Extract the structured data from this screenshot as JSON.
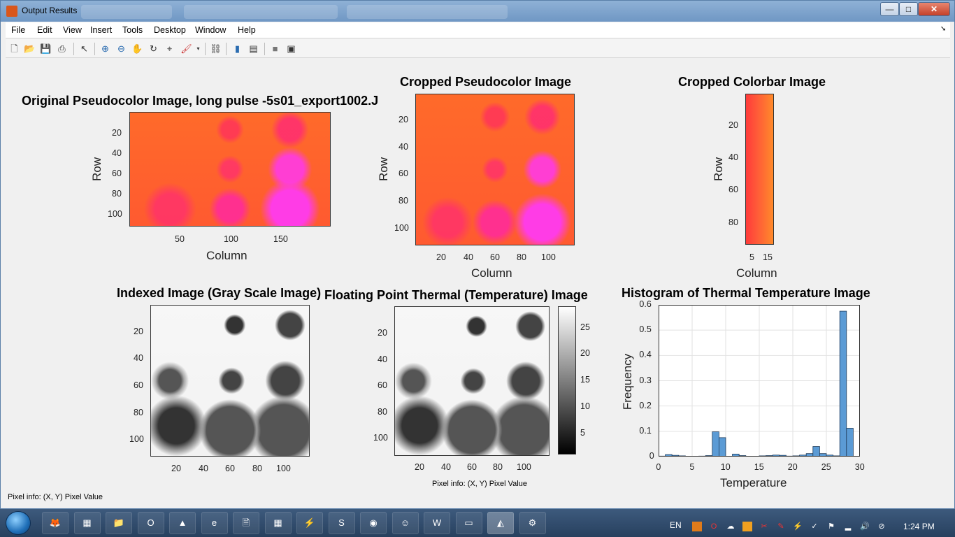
{
  "window": {
    "title": "Output Results",
    "min": "—",
    "max": "□",
    "close": "✕"
  },
  "menu": [
    "File",
    "Edit",
    "View",
    "Insert",
    "Tools",
    "Desktop",
    "Window",
    "Help"
  ],
  "toolbar_icons": [
    "new-figure-icon",
    "open-icon",
    "save-icon",
    "print-icon",
    "select-arrow-icon",
    "zoom-in-icon",
    "zoom-out-icon",
    "pan-icon",
    "rotate-icon",
    "data-cursor-icon",
    "brush-icon",
    "link-icon",
    "colorbar-icon",
    "legend-icon",
    "hide-plot-tools-icon",
    "show-plot-tools-icon"
  ],
  "panels": {
    "original": {
      "title": "Original Pseudocolor Image, long pulse -5s01_export1002.J",
      "ylabel": "Row",
      "xlabel": "Column",
      "yticks": [
        "20",
        "40",
        "60",
        "80",
        "100"
      ],
      "xticks": [
        "50",
        "100",
        "150"
      ]
    },
    "cropped": {
      "title": "Cropped Pseudocolor Image",
      "ylabel": "Row",
      "xlabel": "Column",
      "yticks": [
        "20",
        "40",
        "60",
        "80",
        "100"
      ],
      "xticks": [
        "20",
        "40",
        "60",
        "80",
        "100"
      ]
    },
    "colorbar_img": {
      "title": "Cropped Colorbar Image",
      "ylabel": "Row",
      "xlabel": "Column",
      "yticks": [
        "20",
        "40",
        "60",
        "80"
      ],
      "xticks": [
        "5",
        "15"
      ]
    },
    "indexed": {
      "title": "Indexed Image (Gray Scale Image)",
      "yticks": [
        "20",
        "40",
        "60",
        "80",
        "100"
      ],
      "xticks": [
        "20",
        "40",
        "60",
        "80",
        "100"
      ]
    },
    "thermal": {
      "title": "Floating Point Thermal (Temperature) Image",
      "yticks": [
        "20",
        "40",
        "60",
        "80",
        "100"
      ],
      "xticks": [
        "20",
        "40",
        "60",
        "80",
        "100"
      ],
      "cbar_ticks": [
        "25",
        "20",
        "15",
        "10",
        "5"
      ],
      "pixel_info": "Pixel info: (X, Y)  Pixel Value"
    },
    "histogram": {
      "title": "Histogram of Thermal Temperature Image",
      "ylabel": "Frequency",
      "xlabel": "Temperature"
    }
  },
  "status": {
    "pixel_info": "Pixel info: (X, Y)  Pixel Value"
  },
  "chart_data": {
    "type": "bar",
    "title": "Histogram of Thermal Temperature Image",
    "xlabel": "Temperature",
    "ylabel": "Frequency",
    "xlim": [
      0,
      30
    ],
    "ylim": [
      0,
      0.6
    ],
    "xticks": [
      0,
      5,
      10,
      15,
      20,
      25,
      30
    ],
    "yticks": [
      0,
      0.1,
      0.2,
      0.3,
      0.4,
      0.5,
      0.6
    ],
    "grid": true,
    "bar_color": "#5b9bd5",
    "bin_width": 1,
    "x": [
      0.5,
      1.5,
      2.5,
      3.5,
      4.5,
      5.5,
      6.5,
      7.5,
      8.5,
      9.5,
      10.5,
      11.5,
      12.5,
      13.5,
      14.5,
      15.5,
      16.5,
      17.5,
      18.5,
      19.5,
      20.5,
      21.5,
      22.5,
      23.5,
      24.5,
      25.5,
      26.5,
      27.5,
      28.5,
      29.5
    ],
    "values": [
      0.002,
      0.008,
      0.005,
      0.003,
      0.001,
      0.001,
      0.002,
      0.004,
      0.098,
      0.075,
      0.001,
      0.01,
      0.004,
      0.001,
      0.001,
      0.003,
      0.004,
      0.006,
      0.005,
      0.002,
      0.003,
      0.006,
      0.012,
      0.04,
      0.012,
      0.006,
      0.003,
      0.575,
      0.112,
      0.0
    ]
  },
  "taskbar": {
    "lang": "EN",
    "time": "1:24 PM",
    "apps": [
      "firefox-icon",
      "explorer-icon",
      "folder-icon",
      "opera-icon",
      "vlc-icon",
      "ie-icon",
      "document-icon",
      "tasks-icon",
      "winamp-icon",
      "skype-icon",
      "chrome-icon",
      "android-icon",
      "word-icon",
      "window-icon",
      "matlab-icon",
      "tools-icon"
    ]
  }
}
